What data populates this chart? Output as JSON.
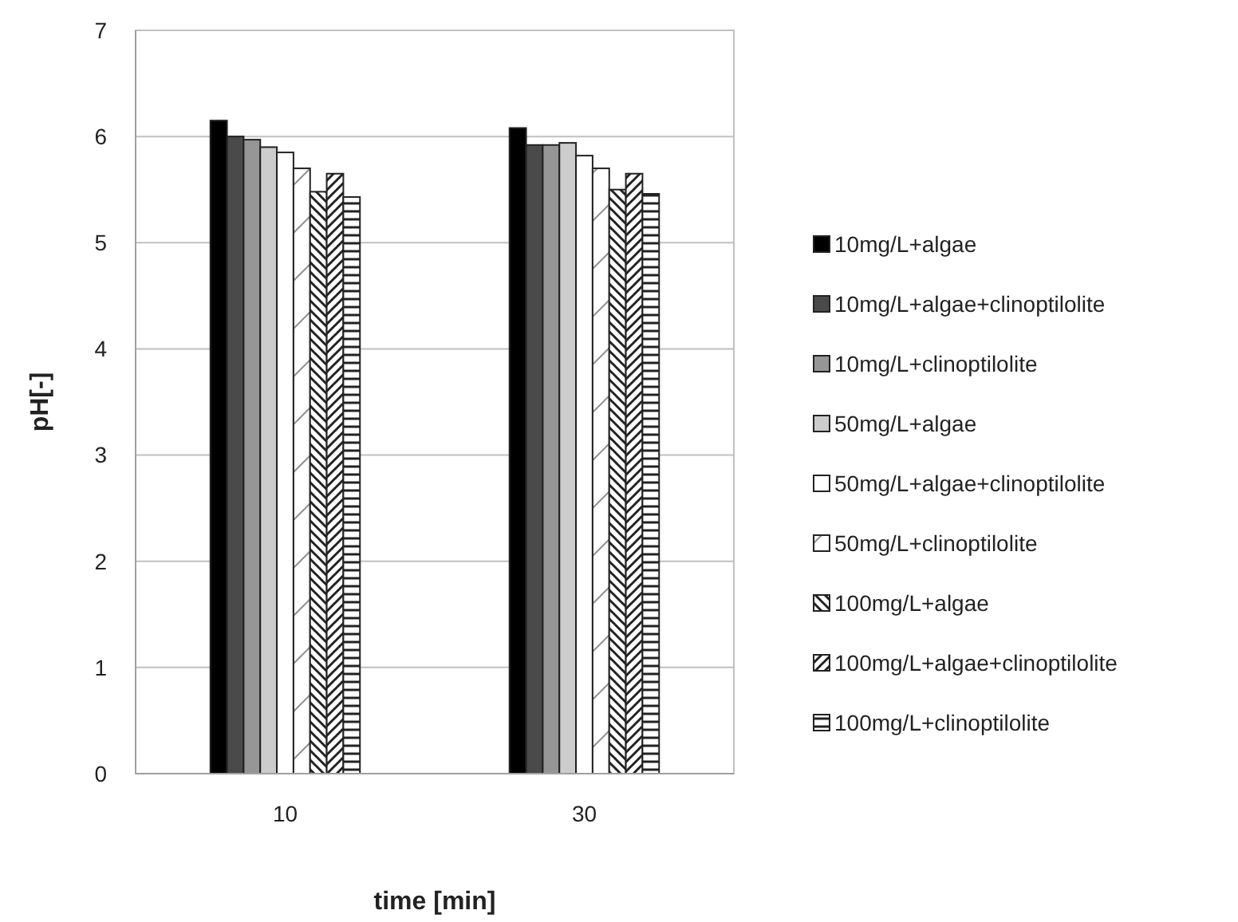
{
  "chart_data": {
    "type": "bar",
    "xlabel": "time [min]",
    "ylabel": "pH[-]",
    "categories": [
      "10",
      "30"
    ],
    "series": [
      {
        "name": "10mg/L+algae",
        "color": "#000000",
        "values": [
          6.15,
          6.08
        ]
      },
      {
        "name": "10mg/L+algae+clinoptilolite",
        "color": "#4a4a4a",
        "values": [
          6.0,
          5.92
        ]
      },
      {
        "name": "10mg/L+clinoptilolite",
        "color": "#969696",
        "values": [
          5.97,
          5.92
        ]
      },
      {
        "name": "50mg/L+algae",
        "color": "#cccccc",
        "values": [
          5.9,
          5.94
        ]
      },
      {
        "name": "50mg/L+algae+clinoptilolite",
        "color": "#ffffff",
        "values": [
          5.85,
          5.82
        ]
      },
      {
        "name": "50mg/L+clinoptilolite",
        "color": "#222222",
        "values": [
          5.7,
          5.7
        ]
      },
      {
        "name": "100mg/L+algae",
        "color": "#222222",
        "values": [
          5.48,
          5.5
        ]
      },
      {
        "name": "100mg/L+algae+clinoptilolite",
        "color": "#222222",
        "values": [
          5.65,
          5.65
        ]
      },
      {
        "name": "100mg/L+clinoptilolite",
        "color": "#222222",
        "values": [
          5.43,
          5.46
        ]
      }
    ],
    "ylim": [
      0,
      7
    ],
    "yticks": [
      0,
      1,
      2,
      3,
      4,
      5,
      6,
      7
    ],
    "grid": "y",
    "legend": "right"
  }
}
